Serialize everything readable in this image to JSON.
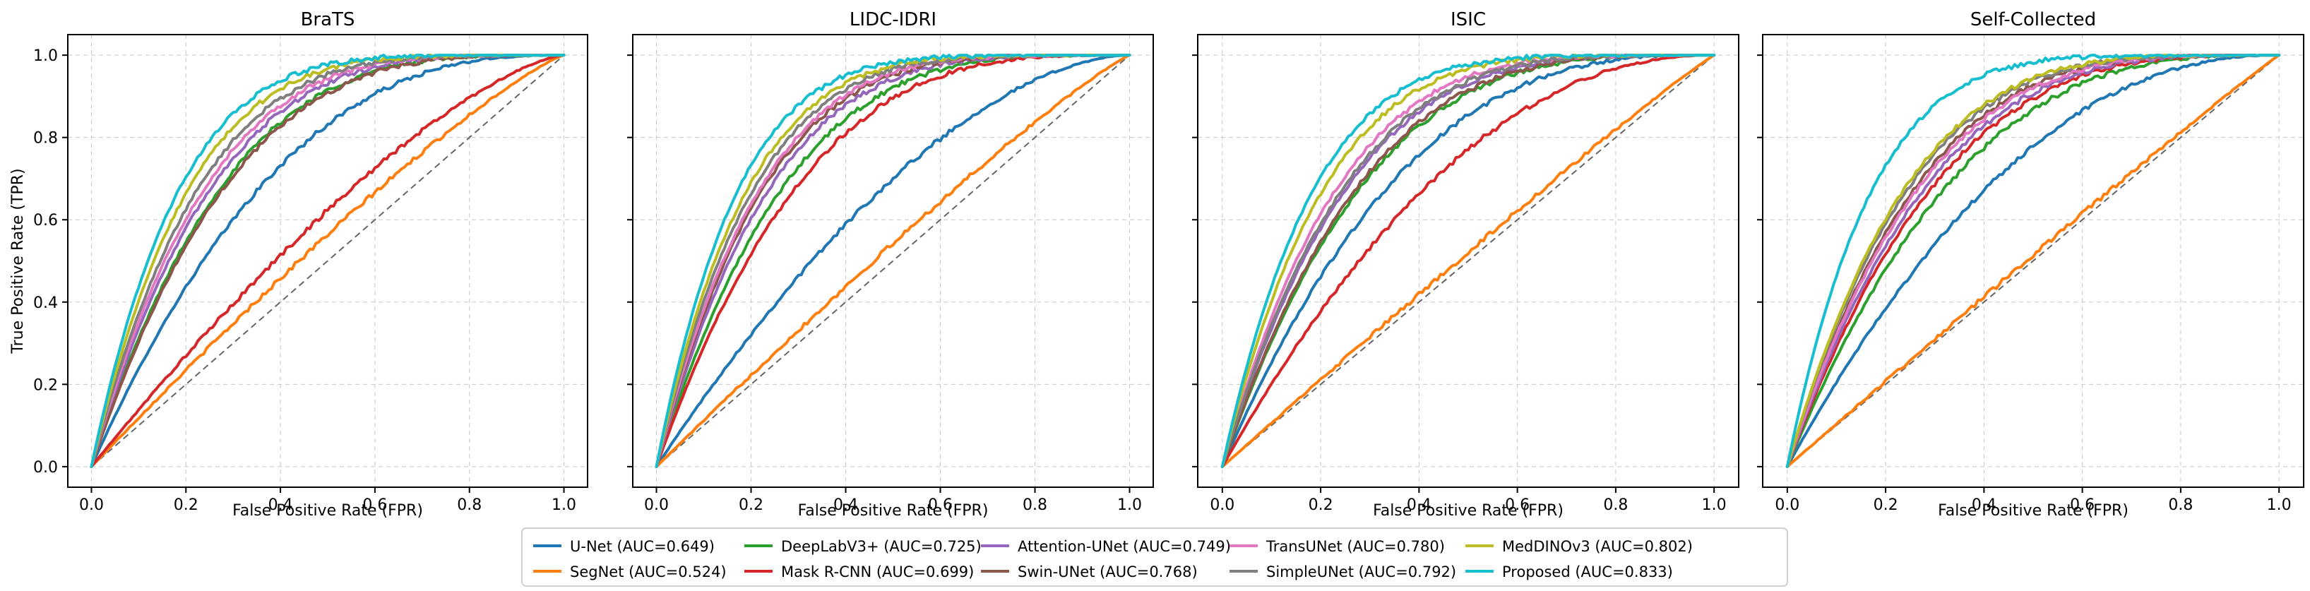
{
  "chart_data": {
    "type": "line",
    "xlabel": "False Positive Rate (FPR)",
    "ylabel": "True Positive Rate (TPR)",
    "xlim": [
      -0.05,
      1.05
    ],
    "ylim": [
      -0.05,
      1.05
    ],
    "xticks": [
      0.0,
      0.2,
      0.4,
      0.6,
      0.8,
      1.0
    ],
    "yticks": [
      0.0,
      0.2,
      0.4,
      0.6,
      0.8,
      1.0
    ],
    "tick_labels": [
      "0.0",
      "0.2",
      "0.4",
      "0.6",
      "0.8",
      "1.0"
    ],
    "grid": true,
    "legend_position": "bottom-center",
    "diagonal": {
      "style": "dashed",
      "color": "#666666"
    },
    "methods": [
      {
        "name": "U-Net",
        "auc": 0.649,
        "label": "U-Net (AUC=0.649)",
        "color": "#1f77b4"
      },
      {
        "name": "SegNet",
        "auc": 0.524,
        "label": "SegNet (AUC=0.524)",
        "color": "#ff7f0e"
      },
      {
        "name": "DeepLabV3+",
        "auc": 0.725,
        "label": "DeepLabV3+ (AUC=0.725)",
        "color": "#2ca02c"
      },
      {
        "name": "Mask R-CNN",
        "auc": 0.699,
        "label": "Mask R-CNN (AUC=0.699)",
        "color": "#d62728"
      },
      {
        "name": "Attention-UNet",
        "auc": 0.749,
        "label": "Attention-UNet (AUC=0.749)",
        "color": "#9467bd"
      },
      {
        "name": "Swin-UNet",
        "auc": 0.768,
        "label": "Swin-UNet (AUC=0.768)",
        "color": "#8c564b"
      },
      {
        "name": "TransUNet",
        "auc": 0.78,
        "label": "TransUNet (AUC=0.780)",
        "color": "#e377c2"
      },
      {
        "name": "SimpleUNet",
        "auc": 0.792,
        "label": "SimpleUNet (AUC=0.792)",
        "color": "#7f7f7f"
      },
      {
        "name": "MedDINOv3",
        "auc": 0.802,
        "label": "MedDINOv3 (AUC=0.802)",
        "color": "#bcbd22"
      },
      {
        "name": "Proposed",
        "auc": 0.833,
        "label": "Proposed (AUC=0.833)",
        "color": "#17becf"
      }
    ],
    "panels": [
      {
        "title": "BraTS",
        "show_ylabel": true,
        "curve_auc": [
          0.72,
          0.545,
          0.78,
          0.585,
          0.795,
          0.775,
          0.805,
          0.815,
          0.83,
          0.845
        ]
      },
      {
        "title": "LIDC-IDRI",
        "show_ylabel": false,
        "curve_auc": [
          0.635,
          0.53,
          0.785,
          0.765,
          0.805,
          0.815,
          0.82,
          0.83,
          0.84,
          0.855
        ]
      },
      {
        "title": "ISIC",
        "show_ylabel": false,
        "curve_auc": [
          0.735,
          0.515,
          0.775,
          0.68,
          0.795,
          0.78,
          0.81,
          0.8,
          0.83,
          0.845
        ]
      },
      {
        "title": "Self-Collected",
        "show_ylabel": false,
        "curve_auc": [
          0.685,
          0.51,
          0.745,
          0.765,
          0.775,
          0.79,
          0.785,
          0.8,
          0.805,
          0.855
        ]
      }
    ]
  }
}
